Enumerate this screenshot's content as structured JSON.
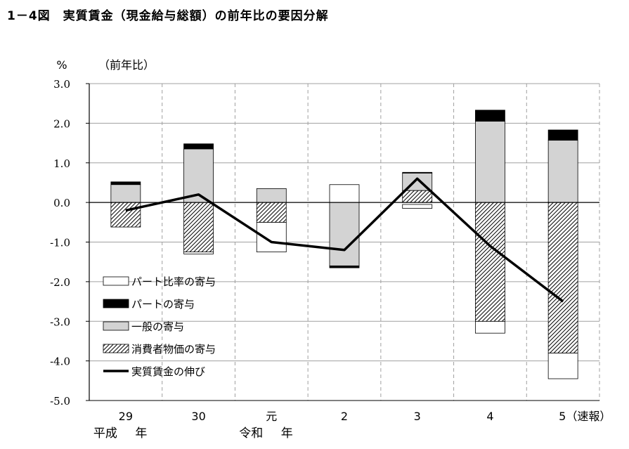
{
  "title": {
    "number": "1－4図",
    "text": "実質賃金（現金給与総額）の前年比の要因分解"
  },
  "chart_data": {
    "type": "bar",
    "stacked": true,
    "y_unit": "%",
    "y_caption": "（前年比）",
    "ylim": [
      -5.0,
      3.0
    ],
    "yticks": [
      3.0,
      2.0,
      1.0,
      0.0,
      -1.0,
      -2.0,
      -3.0,
      -4.0,
      -5.0
    ],
    "ytick_labels": [
      "3.0",
      "2.0",
      "1.0",
      "0.0",
      "-1.0",
      "-2.0",
      "-3.0",
      "-4.0",
      "-5.0"
    ],
    "categories": [
      "29",
      "30",
      "元",
      "2",
      "3",
      "4",
      "5（速報）"
    ],
    "era_labels": [
      {
        "text": "平成",
        "category_index": 0,
        "side": "left"
      },
      {
        "text": "年",
        "category_index": 0,
        "side": "right"
      },
      {
        "text": "令和",
        "category_index": 2,
        "side": "left"
      },
      {
        "text": "年",
        "category_index": 2,
        "side": "right"
      }
    ],
    "series": [
      {
        "name": "パート比率の寄与",
        "fill": "#ffffff",
        "pattern": "none",
        "segments": [
          [
            0,
            0
          ],
          [
            -1.25,
            -1.3
          ],
          [
            -0.5,
            -1.25
          ],
          [
            0,
            0.45
          ],
          [
            -0.15,
            -0.05
          ],
          [
            -3.0,
            -3.3
          ],
          [
            -3.8,
            -4.45
          ]
        ]
      },
      {
        "name": "パートの寄与",
        "fill": "#000000",
        "pattern": "none",
        "segments": [
          [
            0.45,
            0.52
          ],
          [
            1.35,
            1.48
          ],
          [
            0,
            0
          ],
          [
            -1.6,
            -1.65
          ],
          [
            0.74,
            0.76
          ],
          [
            2.05,
            2.33
          ],
          [
            1.57,
            1.83
          ]
        ]
      },
      {
        "name": "一般の寄与",
        "fill": "#d3d3d3",
        "pattern": "none",
        "segments": [
          [
            0,
            0.45
          ],
          [
            0,
            1.35
          ],
          [
            0,
            0.35
          ],
          [
            0,
            -1.6
          ],
          [
            0.3,
            0.74
          ],
          [
            0,
            2.05
          ],
          [
            0,
            1.57
          ]
        ]
      },
      {
        "name": "消費者物価の寄与",
        "fill": "#ffffff",
        "pattern": "hatch",
        "segments": [
          [
            0,
            -0.62
          ],
          [
            0,
            -1.25
          ],
          [
            0,
            -0.5
          ],
          [
            0,
            0
          ],
          [
            0,
            0.3
          ],
          [
            0,
            -3.0
          ],
          [
            0,
            -3.8
          ]
        ]
      }
    ],
    "line": {
      "name": "実質賃金の伸び",
      "color": "#000000",
      "values": [
        -0.2,
        0.2,
        -1.0,
        -1.2,
        0.6,
        -1.1,
        -2.5
      ]
    },
    "legend": {
      "placement": "bottom-left",
      "entries": [
        {
          "label": "パート比率の寄与",
          "kind": "box",
          "fill": "#ffffff",
          "pattern": "none"
        },
        {
          "label": "パートの寄与",
          "kind": "box",
          "fill": "#000000",
          "pattern": "none"
        },
        {
          "label": "一般の寄与",
          "kind": "box",
          "fill": "#d3d3d3",
          "pattern": "none"
        },
        {
          "label": "消費者物価の寄与",
          "kind": "box",
          "fill": "#ffffff",
          "pattern": "hatch"
        },
        {
          "label": "実質賃金の伸び",
          "kind": "line",
          "fill": "#000000",
          "pattern": "none"
        }
      ]
    },
    "grid": {
      "horizontal": true,
      "vertical": "dashed"
    }
  }
}
